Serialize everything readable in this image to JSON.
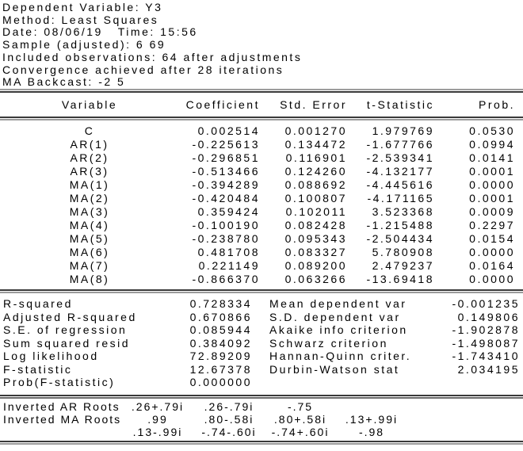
{
  "colors": {
    "background": "#ffffff",
    "text": "#000000",
    "rule_dark": "#3a3a3a",
    "rule_light": "#9c9c9c"
  },
  "header": {
    "lines": [
      "Dependent Variable: Y3",
      "Method: Least Squares",
      "Date: 08/06/19   Time: 15:56",
      "Sample (adjusted): 6 69",
      "Included observations: 64 after adjustments",
      "Convergence achieved after 28 iterations",
      "MA Backcast: -2 5"
    ]
  },
  "coef_table": {
    "columns": [
      "Variable",
      "Coefficient",
      "Std. Error",
      "t-Statistic",
      "Prob."
    ],
    "rows": [
      {
        "variable": "C",
        "coefficient": "0.002514",
        "std_error": "0.001270",
        "t_stat": "1.979769",
        "prob": "0.0530"
      },
      {
        "variable": "AR(1)",
        "coefficient": "-0.225613",
        "std_error": "0.134472",
        "t_stat": "-1.677766",
        "prob": "0.0994"
      },
      {
        "variable": "AR(2)",
        "coefficient": "-0.296851",
        "std_error": "0.116901",
        "t_stat": "-2.539341",
        "prob": "0.0141"
      },
      {
        "variable": "AR(3)",
        "coefficient": "-0.513466",
        "std_error": "0.124260",
        "t_stat": "-4.132177",
        "prob": "0.0001"
      },
      {
        "variable": "MA(1)",
        "coefficient": "-0.394289",
        "std_error": "0.088692",
        "t_stat": "-4.445616",
        "prob": "0.0000"
      },
      {
        "variable": "MA(2)",
        "coefficient": "-0.420484",
        "std_error": "0.100807",
        "t_stat": "-4.171165",
        "prob": "0.0001"
      },
      {
        "variable": "MA(3)",
        "coefficient": "0.359424",
        "std_error": "0.102011",
        "t_stat": "3.523368",
        "prob": "0.0009"
      },
      {
        "variable": "MA(4)",
        "coefficient": "-0.100190",
        "std_error": "0.082428",
        "t_stat": "-1.215488",
        "prob": "0.2297"
      },
      {
        "variable": "MA(5)",
        "coefficient": "-0.238780",
        "std_error": "0.095343",
        "t_stat": "-2.504434",
        "prob": "0.0154"
      },
      {
        "variable": "MA(6)",
        "coefficient": "0.481708",
        "std_error": "0.083327",
        "t_stat": "5.780908",
        "prob": "0.0000"
      },
      {
        "variable": "MA(7)",
        "coefficient": "0.221149",
        "std_error": "0.089200",
        "t_stat": "2.479237",
        "prob": "0.0164"
      },
      {
        "variable": "MA(8)",
        "coefficient": "-0.866370",
        "std_error": "0.063266",
        "t_stat": "-13.69418",
        "prob": "0.0000"
      }
    ]
  },
  "summary": {
    "rows": [
      {
        "l_label": "R-squared",
        "l_value": "0.728334",
        "r_label": "Mean dependent var",
        "r_value": "-0.001235"
      },
      {
        "l_label": "Adjusted R-squared",
        "l_value": "0.670866",
        "r_label": "S.D. dependent var",
        "r_value": "0.149806"
      },
      {
        "l_label": "S.E. of regression",
        "l_value": "0.085944",
        "r_label": "Akaike info criterion",
        "r_value": "-1.902878"
      },
      {
        "l_label": "Sum squared resid",
        "l_value": "0.384092",
        "r_label": "Schwarz criterion",
        "r_value": "-1.498087"
      },
      {
        "l_label": "Log likelihood",
        "l_value": "72.89209",
        "r_label": "Hannan-Quinn criter.",
        "r_value": "-1.743410"
      },
      {
        "l_label": "F-statistic",
        "l_value": "12.67378",
        "r_label": "Durbin-Watson stat",
        "r_value": "2.034195"
      },
      {
        "l_label": "Prob(F-statistic)",
        "l_value": "0.000000",
        "r_label": "",
        "r_value": ""
      }
    ]
  },
  "roots": {
    "rows": [
      {
        "label": "Inverted AR Roots",
        "values": [
          ".26+.79i",
          ".26-.79i",
          "-.75",
          ""
        ]
      },
      {
        "label": "Inverted MA Roots",
        "values": [
          ".99",
          ".80-.58i",
          ".80+.58i",
          ".13+.99i"
        ]
      },
      {
        "label": "",
        "values": [
          ".13-.99i",
          "-.74-.60i",
          "-.74+.60i",
          "-.98"
        ]
      }
    ]
  }
}
